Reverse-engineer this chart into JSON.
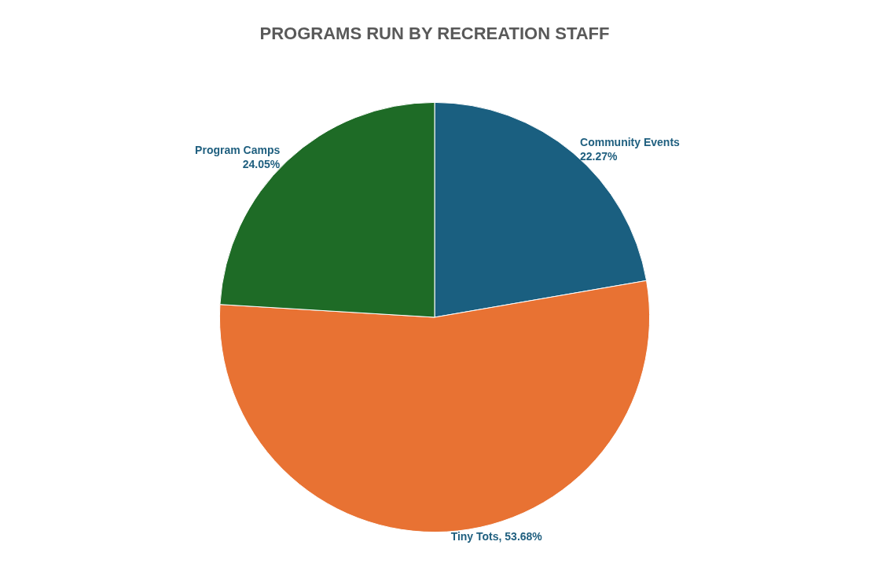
{
  "chart_data": {
    "type": "pie",
    "title": "PROGRAMS RUN BY RECREATION STAFF",
    "categories": [
      "Community Events",
      "Tiny Tots",
      "Program Camps"
    ],
    "values": [
      22.27,
      53.68,
      24.05
    ],
    "value_labels": [
      "22.27%",
      "53.68%",
      "24.05%"
    ],
    "colors": [
      "#1a5f80",
      "#e87233",
      "#1e6b26"
    ],
    "legend": false
  }
}
